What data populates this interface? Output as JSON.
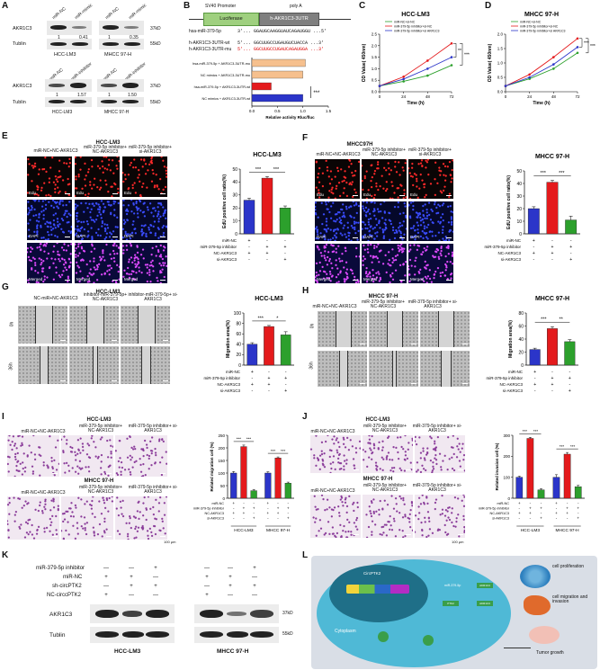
{
  "panels": {
    "A": "A",
    "B": "B",
    "C": "C",
    "D": "D",
    "E": "E",
    "F": "F",
    "G": "G",
    "H": "H",
    "I": "I",
    "J": "J",
    "K": "K",
    "L": "L"
  },
  "A": {
    "blot1": {
      "lanes": [
        "miR-NC",
        "miR-mimic",
        "miR-NC",
        "miR-mimic"
      ],
      "rows": [
        "AKR1C3",
        "Tublin"
      ],
      "kda": [
        "37kD",
        "55kD"
      ],
      "values": [
        "1",
        "0.41",
        "1",
        "0.35"
      ],
      "cells": [
        "HCC-LM3",
        "MHCC 97-H"
      ]
    },
    "blot2": {
      "lanes": [
        "miR-NC",
        "miR-inhibitor",
        "miR-NC",
        "miR-inhibitor"
      ],
      "rows": [
        "AKR1C3",
        "Tublin"
      ],
      "kda": [
        "37kD",
        "55kD"
      ],
      "values": [
        "1",
        "1.57",
        "1",
        "1.50"
      ],
      "cells": [
        "HCC-LM3",
        "MHCC 97-H"
      ]
    }
  },
  "B": {
    "promoter": "SV40 Promoter",
    "luc": "Luciferase",
    "utr": "h-AKR1C3-3UTR",
    "polyA": "poly A",
    "seqs": [
      {
        "name": "hsa-miR-379-5p",
        "seq": "3'... GGAUGCAAGGUAUCAGAUGGU ...5'"
      },
      {
        "name": "h-AKR1C3-3UTR-wt",
        "seq": "5'... GGCUUGCCUGAUGUCUACCA ...3'"
      },
      {
        "name": "h-AKR1C3-3UTR-mu",
        "seq": "5'... GGCUUGCCUGAUCAGAUGGA ...3'"
      }
    ],
    "sig": "***",
    "chart_data": {
      "type": "bar",
      "orientation": "horizontal",
      "categories": [
        "hsa-miR-379-5p + AKR1C3-3UTR-mu",
        "NC mimics + AKR1C3-3UTR-mu",
        "hsa-miR-379-5p + AKR1C3-3UTR-wt",
        "NC mimics + AKR1C3-3UTR-wt"
      ],
      "values": [
        1.05,
        1.0,
        0.38,
        1.0
      ],
      "colors": [
        "#f6c08e",
        "#f6c08e",
        "#e41a1c",
        "#2b35c9"
      ],
      "xlabel": "Relative activity Rluc/fluc",
      "xlim": [
        0,
        1.5
      ],
      "xticks": [
        "0.0",
        "0.5",
        "1.0",
        "1.5"
      ]
    }
  },
  "C": {
    "chart_data": {
      "type": "line",
      "title": "HCC-LM3",
      "xlabel": "Time (h)",
      "ylabel": "OD Value( 450nm)",
      "x": [
        0,
        24,
        48,
        72
      ],
      "ylim": [
        0.0,
        2.5
      ],
      "yticks": [
        "0.0",
        "0.5",
        "1.0",
        "1.5",
        "2.0",
        "2.5"
      ],
      "series": [
        {
          "name": "miR-NC+si-NC",
          "color": "#2ca02c",
          "values": [
            0.25,
            0.45,
            0.7,
            1.15
          ]
        },
        {
          "name": "miR-379-5p inhibitor+si-NC",
          "color": "#e41a1c",
          "values": [
            0.25,
            0.65,
            1.35,
            2.1
          ]
        },
        {
          "name": "miR-379-5p inhibitor+si AKR1C3",
          "color": "#2b35c9",
          "values": [
            0.25,
            0.55,
            1.0,
            1.5
          ]
        }
      ]
    },
    "sig": [
      "**",
      "***"
    ]
  },
  "D": {
    "chart_data": {
      "type": "line",
      "title": "MHCC 97-H",
      "xlabel": "Time (h)",
      "ylabel": "OD Value( 450nm)",
      "x": [
        0,
        24,
        48,
        72
      ],
      "ylim": [
        0.0,
        2.0
      ],
      "yticks": [
        "0.0",
        "0.5",
        "1.0",
        "1.5",
        "2.0"
      ],
      "series": [
        {
          "name": "miR-NC+si-NC",
          "color": "#2ca02c",
          "values": [
            0.2,
            0.45,
            0.8,
            1.35
          ]
        },
        {
          "name": "miR-379-5p inhibitor+si-NC",
          "color": "#e41a1c",
          "values": [
            0.2,
            0.6,
            1.2,
            1.85
          ]
        },
        {
          "name": "miR-379-5p inhibitor+si AKR1C3",
          "color": "#2b35c9",
          "values": [
            0.2,
            0.5,
            0.95,
            1.55
          ]
        }
      ]
    },
    "sig": [
      "***",
      "***"
    ]
  },
  "E": {
    "cell": "HCC-LM3",
    "cols": [
      "miR-NC+NC-AKR1C3",
      "miR-379-5p inhibitor+ NC-AKR1C3",
      "miR-379-5p inhibitor+ si-AKR1C3"
    ],
    "rows": [
      "Edu",
      "DAPI",
      "Merged"
    ],
    "chart_data": {
      "type": "bar",
      "title": "HCC-LM3",
      "ylabel": "EdU positive cell ratio(%)",
      "ylim": [
        0,
        50
      ],
      "yticks": [
        "0",
        "10",
        "20",
        "30",
        "40",
        "50"
      ],
      "values": [
        26,
        43,
        20
      ],
      "errors": [
        1.5,
        1.2,
        1.5
      ],
      "colors": [
        "#2b35c9",
        "#e41a1c",
        "#2ca02c"
      ]
    },
    "sig": [
      "***",
      "***"
    ],
    "cond": {
      "labels": [
        "miR-NC",
        "miR-379-5p inhibitor",
        "NC-AKR1C3",
        "si-AKR1C3"
      ],
      "signs": [
        [
          "+",
          "-",
          "-"
        ],
        [
          "-",
          "+",
          "+"
        ],
        [
          "+",
          "+",
          "-"
        ],
        [
          "-",
          "-",
          "+"
        ]
      ]
    }
  },
  "F": {
    "cell": "MHCC97H",
    "cols": [
      "miR-NC+NC-AKR1C3",
      "miR-379-5p inhibitor+ NC-AKR1C3",
      "miR-379-5p inhibitor+ si-AKR1C3"
    ],
    "rows": [
      "Edu",
      "DAPI",
      "Merged"
    ],
    "chart_data": {
      "type": "bar",
      "title": "MHCC 97-H",
      "ylabel": "EdU positive cell ratio(%)",
      "ylim": [
        0,
        50
      ],
      "yticks": [
        "0",
        "10",
        "20",
        "30",
        "40",
        "50"
      ],
      "values": [
        20,
        41,
        11
      ],
      "errors": [
        1.5,
        1.5,
        3
      ],
      "colors": [
        "#2b35c9",
        "#e41a1c",
        "#2ca02c"
      ]
    },
    "sig": [
      "***",
      "***"
    ],
    "cond": {
      "labels": [
        "miR-NC",
        "miR-379-5p inhibitor",
        "NC-AKR1C3",
        "si-AKR1C3"
      ],
      "signs": [
        [
          "+",
          "-",
          "-"
        ],
        [
          "-",
          "+",
          "+"
        ],
        [
          "+",
          "+",
          "-"
        ],
        [
          "-",
          "-",
          "+"
        ]
      ]
    }
  },
  "G": {
    "cell": "HCC-LM3",
    "cols": [
      "NC-miR+NC-AKR1C3",
      "inhibitor-miR-379-5p+ NC-AKR1C3",
      "inhibitor-miR-379-5p+ si-AKR1C3"
    ],
    "rows": [
      "0h",
      "36h"
    ],
    "chart_data": {
      "type": "bar",
      "title": "HCC-LM3",
      "ylabel": "Migration area(%)",
      "ylim": [
        0,
        100
      ],
      "yticks": [
        "0",
        "20",
        "40",
        "60",
        "80",
        "100"
      ],
      "values": [
        40,
        74,
        58
      ],
      "errors": [
        3,
        2,
        6
      ],
      "colors": [
        "#2b35c9",
        "#e41a1c",
        "#2ca02c"
      ]
    },
    "sig": [
      "***",
      "*"
    ],
    "cond": {
      "labels": [
        "miR-NC",
        "miR-379-5p inhibitor",
        "NC-AKR1C3",
        "si-AKR1C3"
      ],
      "signs": [
        [
          "+",
          "-",
          "-"
        ],
        [
          "-",
          "+",
          "+"
        ],
        [
          "+",
          "+",
          "-"
        ],
        [
          "-",
          "-",
          "+"
        ]
      ]
    }
  },
  "H": {
    "cell": "MHCC 97-H",
    "cols": [
      "miR-NC+NC-AKR1C3",
      "miR-379-5p inhibitor+ NC-AKR1C3",
      "miR-379-5p inhibitor+ si-AKR1C3"
    ],
    "rows": [
      "0h",
      "36h"
    ],
    "chart_data": {
      "type": "bar",
      "title": "MHCC 97-H",
      "ylabel": "Migration area(%)",
      "ylim": [
        0,
        80
      ],
      "yticks": [
        "0",
        "20",
        "40",
        "60",
        "80"
      ],
      "values": [
        24,
        56,
        36
      ],
      "errors": [
        2,
        3,
        3
      ],
      "colors": [
        "#2b35c9",
        "#e41a1c",
        "#2ca02c"
      ]
    },
    "sig": [
      "***",
      "**"
    ],
    "cond": {
      "labels": [
        "miR-NC",
        "miR-379-5p inhibitor",
        "NC-AKR1C3",
        "si-AKR1C3"
      ],
      "signs": [
        [
          "+",
          "-",
          "-"
        ],
        [
          "-",
          "+",
          "+"
        ],
        [
          "+",
          "+",
          "-"
        ],
        [
          "-",
          "-",
          "+"
        ]
      ]
    }
  },
  "I": {
    "cells": [
      "HCC-LM3",
      "MHCC 97-H"
    ],
    "cols": [
      "miR-NC+NC-AKR1C3",
      "miR-379-5p inhibitor+ NC-AKR1C3",
      "miR-379-5p inhibitor+ si-AKR1C3"
    ],
    "scalebar": "100 μm",
    "chart_data": {
      "type": "bar",
      "ylabel": "Related migration cell (%)",
      "ylim": [
        0,
        250
      ],
      "yticks": [
        "0",
        "50",
        "100",
        "150",
        "200",
        "250"
      ],
      "groups": [
        "HCC-LM3",
        "MHCC 97-H"
      ],
      "values": [
        [
          100,
          205,
          30
        ],
        [
          100,
          160,
          60
        ]
      ],
      "errors": [
        [
          6,
          6,
          5
        ],
        [
          5,
          4,
          4
        ]
      ],
      "colors": [
        "#2b35c9",
        "#e41a1c",
        "#2ca02c"
      ]
    },
    "sig": [
      "***",
      "***",
      "***",
      "***"
    ],
    "cond": {
      "labels": [
        "miR-NC",
        "miR-379-5p inhibitor",
        "NC-AKR1C3",
        "si-AKR1C3"
      ],
      "signs": [
        [
          "+",
          "-",
          "-",
          "+",
          "-",
          "-"
        ],
        [
          "-",
          "+",
          "+",
          "-",
          "+",
          "+"
        ],
        [
          "+",
          "+",
          "-",
          "+",
          "+",
          "-"
        ],
        [
          "-",
          "-",
          "+",
          "-",
          "-",
          "+"
        ]
      ]
    }
  },
  "J": {
    "cells": [
      "HCC-LM3",
      "MHCC 97-H"
    ],
    "cols": [
      "miR-NC+NC-AKR1C3",
      "miR-379-5p inhibitor+ NC-AKR1C3",
      "miR-379-5p inhibitor+ si-AKR1C3"
    ],
    "scalebar": "100 μm",
    "chart_data": {
      "type": "bar",
      "ylabel": "Related invasion cell (%)",
      "ylim": [
        0,
        300
      ],
      "yticks": [
        "0",
        "100",
        "200",
        "300"
      ],
      "groups": [
        "HCC-LM3",
        "MHCC 97-H"
      ],
      "values": [
        [
          100,
          285,
          40
        ],
        [
          100,
          210,
          55
        ]
      ],
      "errors": [
        [
          5,
          5,
          5
        ],
        [
          12,
          8,
          6
        ]
      ],
      "colors": [
        "#2b35c9",
        "#e41a1c",
        "#2ca02c"
      ]
    },
    "sig": [
      "***",
      "***",
      "***",
      "***"
    ],
    "cond": {
      "labels": [
        "miR-NC",
        "miR-379-5p inhibitor",
        "NC-AKR1C3",
        "si-AKR1C3"
      ],
      "signs": [
        [
          "+",
          "-",
          "-",
          "+",
          "-",
          "-"
        ],
        [
          "-",
          "+",
          "+",
          "-",
          "+",
          "+"
        ],
        [
          "+",
          "+",
          "-",
          "+",
          "+",
          "-"
        ],
        [
          "-",
          "-",
          "+",
          "-",
          "-",
          "+"
        ]
      ]
    }
  },
  "K": {
    "labels": [
      "miR-379-5p inhibitor",
      "miR-NC",
      "sh-circPTK2",
      "NC-circcPTK2"
    ],
    "signs_left": [
      [
        "—",
        "—",
        "+"
      ],
      [
        "+",
        "+",
        "—"
      ],
      [
        "—",
        "+",
        "+"
      ],
      [
        "+",
        "—",
        "—"
      ]
    ],
    "signs_right": [
      [
        "—",
        "—",
        "+"
      ],
      [
        "+",
        "+",
        "—"
      ],
      [
        "—",
        "+",
        "+"
      ],
      [
        "+",
        "—",
        "—"
      ]
    ],
    "rows": [
      "AKR1C3",
      "Tublin"
    ],
    "kda": [
      "37kD",
      "55kD"
    ],
    "cells": [
      "HCC-LM3",
      "MHCC 97-H"
    ]
  },
  "L": {
    "cytoplasm": "Cytoplasm",
    "nucleus": "CircPTK2",
    "outcomes": [
      "cell proliferation",
      "cell migration and invasion",
      "Tumor growth"
    ],
    "nodes": [
      "miR-379-5p",
      "AKR1C3",
      "PTK2",
      "AKR1C3"
    ]
  }
}
